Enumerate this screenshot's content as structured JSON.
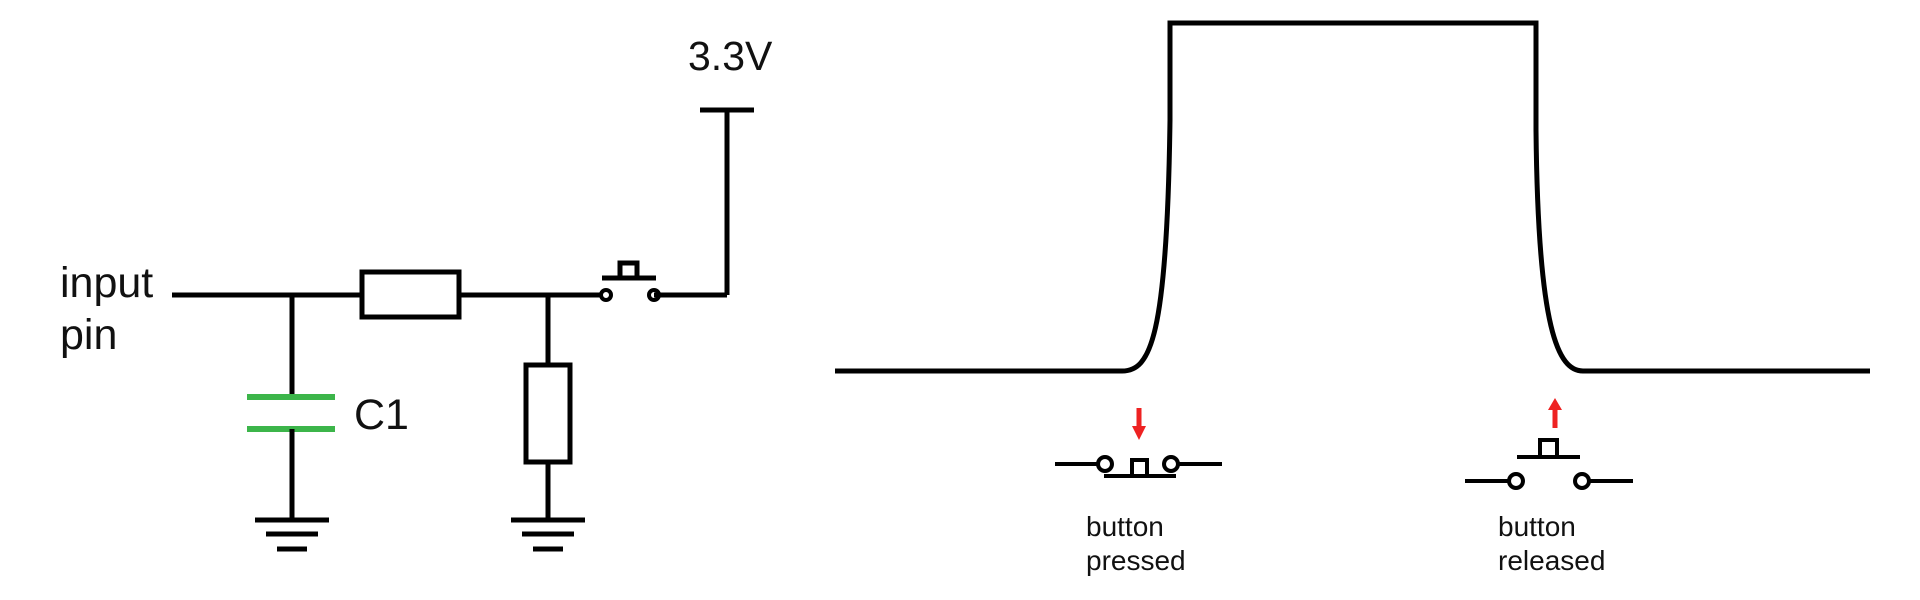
{
  "circuit": {
    "input_label_line1": "input",
    "input_label_line2": "pin",
    "supply_label": "3.3V",
    "capacitor_label": "C1"
  },
  "waveform": {
    "press_caption_line1": "button",
    "press_caption_line2": "pressed",
    "release_caption_line1": "button",
    "release_caption_line2": "released"
  },
  "colors": {
    "wire": "#000000",
    "capacitor": "#3cb54a",
    "arrow": "#ee2222",
    "background": "#ffffff"
  }
}
